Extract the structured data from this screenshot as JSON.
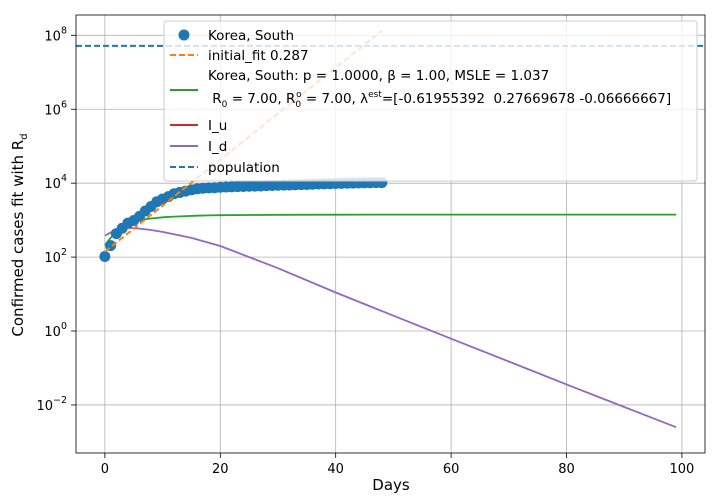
{
  "chart_data": {
    "type": "line",
    "xlabel": "Days",
    "ylabel": "Confirmed cases fit with R",
    "ylabel_sub": "d",
    "yscale": "log",
    "xlim": [
      -5,
      104
    ],
    "ylim_exp": [
      -3.3,
      8.55
    ],
    "grid": true,
    "legend_position": "top-right",
    "x_ticks": [
      0,
      20,
      40,
      60,
      80,
      100
    ],
    "y_tick_exps": [
      -2,
      0,
      2,
      4,
      6,
      8
    ],
    "tick_base": "10",
    "colors": {
      "observed": "#1f77b4",
      "initial_fit": "#ff7f0e",
      "model_fit": "#2ca02c",
      "I_u": "#d62728",
      "I_d": "#9467bd",
      "population": "#1f77b4"
    },
    "observed": {
      "name": "Korea, South",
      "x": [
        0,
        1,
        2,
        3,
        4,
        5,
        6,
        7,
        8,
        9,
        10,
        11,
        12,
        13,
        14,
        15,
        16,
        17,
        18,
        19,
        20,
        21,
        22,
        23,
        24,
        25,
        26,
        27,
        28,
        29,
        30,
        31,
        32,
        33,
        34,
        35,
        36,
        37,
        38,
        39,
        40,
        41,
        42,
        43,
        44,
        45,
        46,
        47,
        48
      ],
      "y": [
        104,
        204,
        433,
        602,
        833,
        977,
        1261,
        1766,
        2337,
        3150,
        3736,
        4335,
        5186,
        5621,
        6088,
        6593,
        7041,
        7313,
        7478,
        7513,
        7755,
        7869,
        7979,
        8086,
        8162,
        8236,
        8320,
        8413,
        8565,
        8652,
        8799,
        8897,
        8961,
        9037,
        9137,
        9241,
        9332,
        9478,
        9583,
        9661,
        9786,
        9887,
        9976,
        10062,
        10156,
        10237,
        10284,
        10331,
        10384
      ]
    },
    "initial_fit": {
      "name": "initial_fit 0.287",
      "x": [
        0,
        48
      ],
      "y": [
        140,
        133000000
      ]
    },
    "model_fit": {
      "label_line1": "Korea, South: p = 1.0000,  β =  1.00, MSLE = 1.037",
      "label_line2_prefix": " R",
      "label_line2_mid1": " = 7.00, R",
      "label_line2_mid2": " = 7.00, λ",
      "label_line2_suffix": "=[-0.61955392  0.27669678 -0.06666667]",
      "sub_0": "0",
      "sub_o": "0",
      "sup_o": "o",
      "sup_est": "est",
      "x": [
        0,
        1,
        2,
        3,
        4,
        5,
        6,
        7,
        8,
        10,
        12,
        14,
        16,
        18,
        20,
        25,
        30,
        40,
        50,
        60,
        70,
        80,
        90,
        99
      ],
      "y": [
        210,
        330,
        480,
        640,
        780,
        900,
        990,
        1060,
        1110,
        1190,
        1250,
        1290,
        1320,
        1340,
        1360,
        1380,
        1395,
        1405,
        1410,
        1412,
        1413,
        1413,
        1413,
        1413
      ]
    },
    "I_u": {
      "name": "I_u",
      "x": [],
      "y": []
    },
    "I_d": {
      "name": "I_d",
      "x": [
        0,
        2,
        4,
        6,
        8,
        10,
        15,
        20,
        30,
        40,
        50,
        60,
        70,
        80,
        90,
        99
      ],
      "y": [
        380,
        560,
        620,
        590,
        540,
        480,
        330,
        200,
        50,
        11,
        2.6,
        0.62,
        0.15,
        0.036,
        0.0088,
        0.0025
      ]
    },
    "population": {
      "name": "population",
      "y": 51780000
    }
  }
}
